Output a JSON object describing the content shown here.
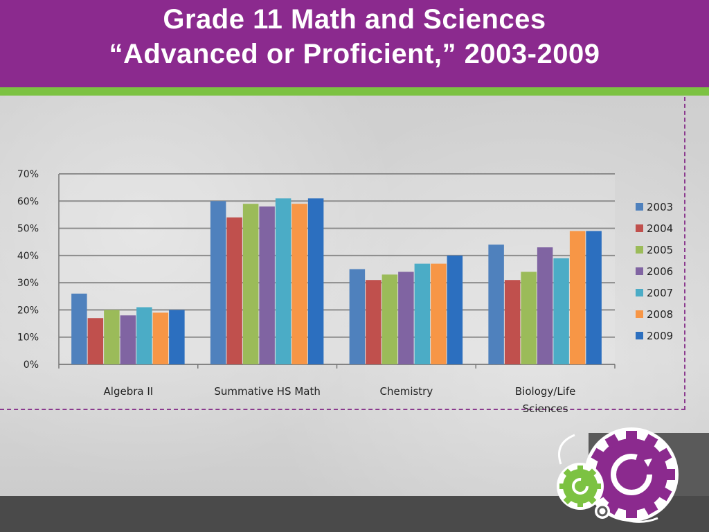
{
  "header": {
    "title_line1": "Grade 11 Math and Sciences",
    "title_line2": "“Advanced or Proficient,” 2003-2009"
  },
  "colors": {
    "header_bg": "#8b2a8e",
    "stripe": "#7cc242",
    "footer": "#4a4a4a"
  },
  "chart_data": {
    "type": "bar",
    "categories": [
      "Algebra  II",
      "Summative HS Math",
      "Chemistry",
      "Biology/Life Sciences"
    ],
    "category_lines": [
      [
        "Algebra  II"
      ],
      [
        "Summative HS Math"
      ],
      [
        "Chemistry"
      ],
      [
        "Biology/Life",
        "Sciences"
      ]
    ],
    "series": [
      {
        "name": "2003",
        "color": "#4f81bd",
        "values": [
          26,
          60,
          35,
          44
        ]
      },
      {
        "name": "2004",
        "color": "#c0504d",
        "values": [
          17,
          54,
          31,
          31
        ]
      },
      {
        "name": "2005",
        "color": "#9bbb59",
        "values": [
          20,
          59,
          33,
          34
        ]
      },
      {
        "name": "2006",
        "color": "#8064a2",
        "values": [
          18,
          58,
          34,
          43
        ]
      },
      {
        "name": "2007",
        "color": "#4bacc6",
        "values": [
          21,
          61,
          37,
          39
        ]
      },
      {
        "name": "2008",
        "color": "#f79646",
        "values": [
          19,
          59,
          37,
          49
        ]
      },
      {
        "name": "2009",
        "color": "#2c6fbf",
        "values": [
          20,
          61,
          40,
          49
        ]
      }
    ],
    "y_ticks": [
      "0%",
      "10%",
      "20%",
      "30%",
      "40%",
      "50%",
      "60%",
      "70%"
    ],
    "ylim": [
      0,
      70
    ],
    "grid": true,
    "legend_position": "right"
  }
}
